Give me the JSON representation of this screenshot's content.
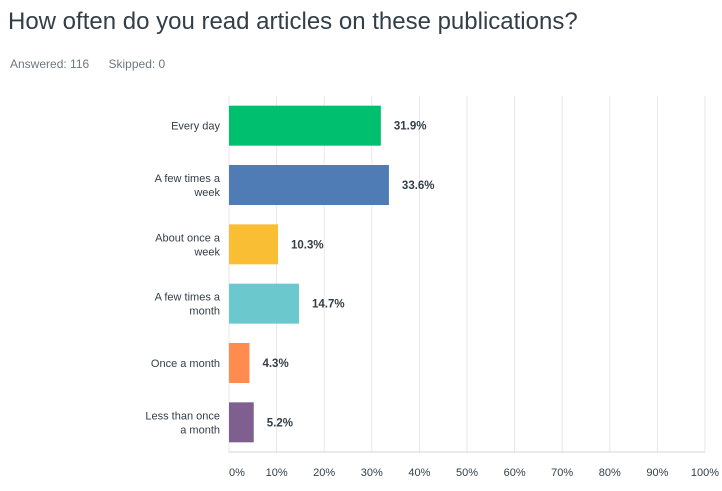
{
  "question": {
    "title": "How often do you read articles on these publications?",
    "answered": "Answered: 116",
    "skipped": "Skipped: 0"
  },
  "chart_data": {
    "type": "bar",
    "orientation": "horizontal",
    "title": "How often do you read articles on these publications?",
    "categories": [
      [
        "Every day"
      ],
      [
        "A few times a",
        "week"
      ],
      [
        "About once a",
        "week"
      ],
      [
        "A few times a",
        "month"
      ],
      [
        "Once a month"
      ],
      [
        "Less than once",
        "a month"
      ]
    ],
    "values": [
      31.9,
      33.6,
      10.3,
      14.7,
      4.3,
      5.2
    ],
    "value_labels": [
      "31.9%",
      "33.6%",
      "10.3%",
      "14.7%",
      "4.3%",
      "5.2%"
    ],
    "colors": [
      "#00bf6f",
      "#507cb6",
      "#f9be33",
      "#6bc8cd",
      "#ff8b4f",
      "#7f5f90"
    ],
    "xlim": [
      0,
      100
    ],
    "ticks": [
      0,
      10,
      20,
      30,
      40,
      50,
      60,
      70,
      80,
      90,
      100
    ],
    "tick_labels": [
      "0%",
      "10%",
      "20%",
      "30%",
      "40%",
      "50%",
      "60%",
      "70%",
      "80%",
      "90%",
      "100%"
    ],
    "grid": true,
    "grid_color": "#e6e8ea"
  }
}
